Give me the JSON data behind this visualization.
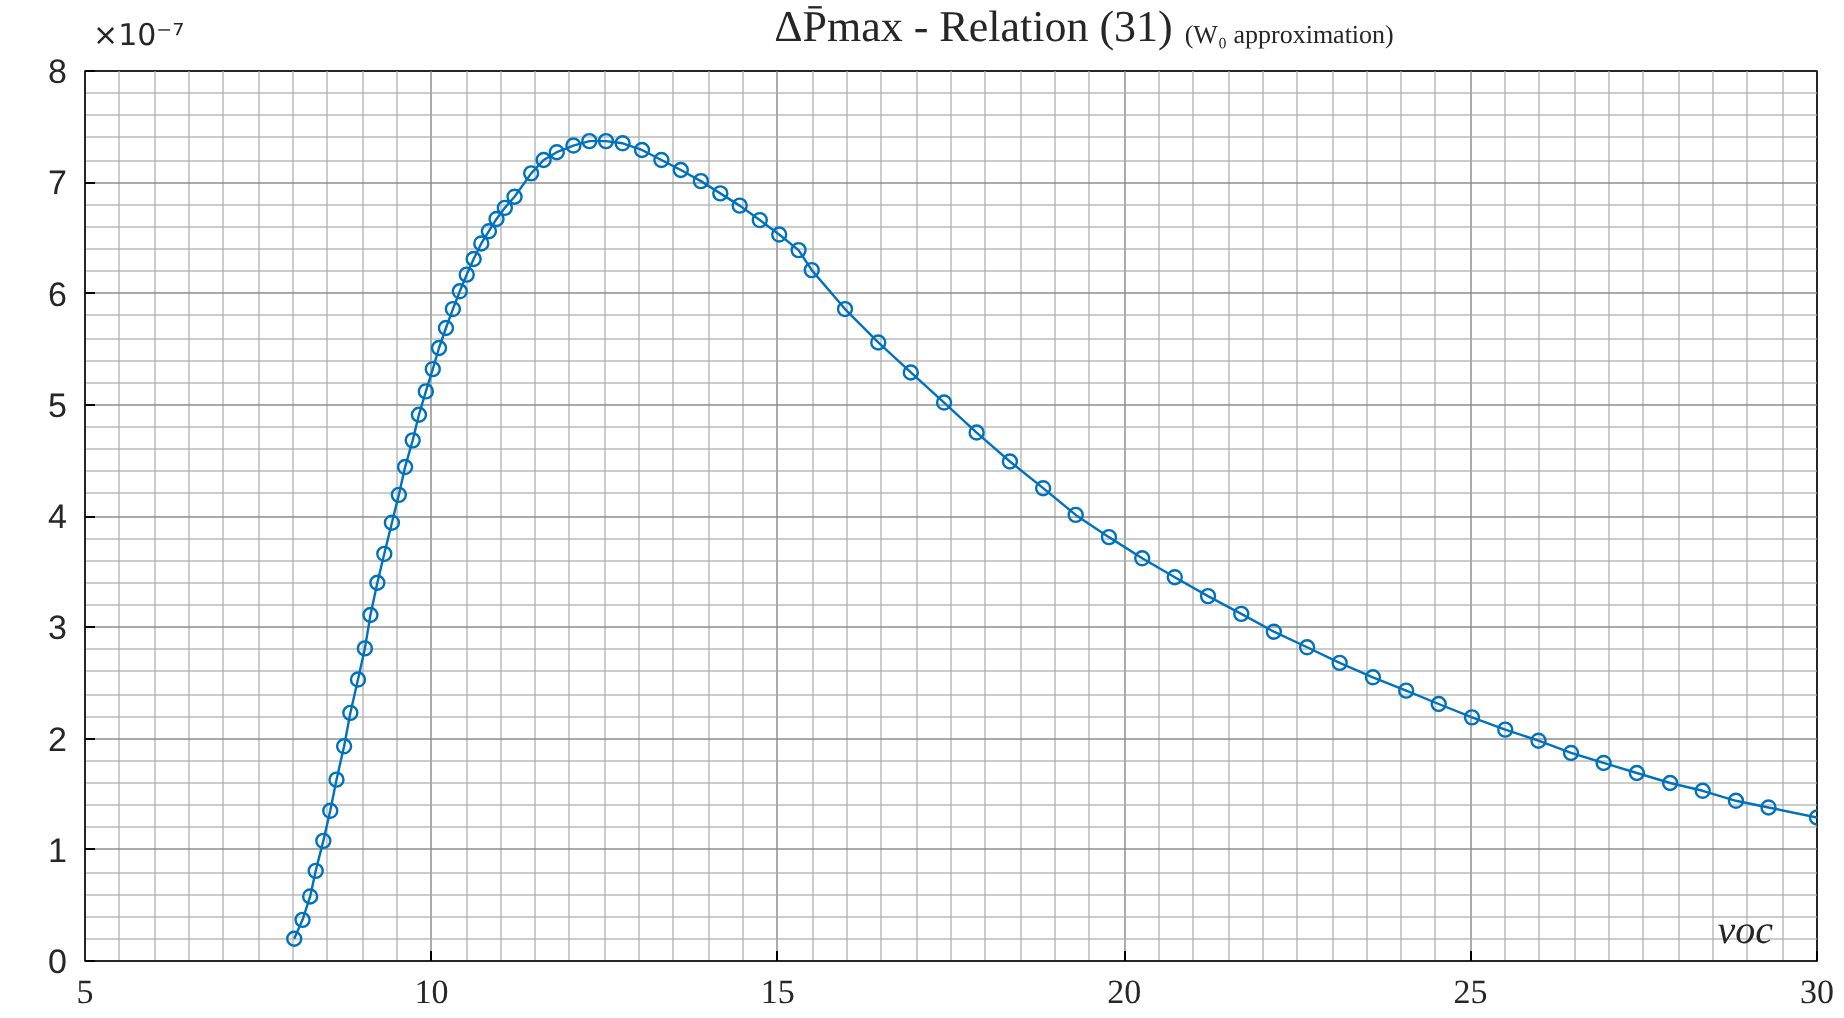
{
  "chart_data": {
    "type": "line",
    "title": "ΔP̄max - Relation (31)",
    "subtitle": "(W₀ approximation)",
    "xlabel": "voc",
    "annotations": [
      "×10⁻⁷"
    ],
    "x": [
      8.02,
      8.14,
      8.25,
      8.33,
      8.44,
      8.54,
      8.63,
      8.74,
      8.83,
      8.94,
      9.04,
      9.12,
      9.22,
      9.32,
      9.43,
      9.53,
      9.62,
      9.73,
      9.82,
      9.92,
      10.02,
      10.11,
      10.21,
      10.31,
      10.41,
      10.51,
      10.61,
      10.72,
      10.83,
      10.94,
      11.06,
      11.2,
      11.44,
      11.62,
      11.81,
      12.05,
      12.28,
      12.52,
      12.76,
      13.04,
      13.32,
      13.6,
      13.89,
      14.17,
      14.45,
      14.74,
      15.02,
      15.3,
      15.49,
      15.97,
      16.45,
      16.92,
      17.4,
      17.87,
      18.35,
      18.83,
      19.3,
      19.78,
      20.26,
      20.73,
      21.21,
      21.69,
      22.16,
      22.64,
      23.11,
      23.59,
      24.07,
      24.54,
      25.02,
      25.5,
      25.98,
      26.45,
      26.92,
      27.4,
      27.88,
      28.35,
      28.83,
      29.3,
      30
    ],
    "series": [
      {
        "color": "#0072bd",
        "values": [
          0.2,
          0.37,
          0.58,
          0.81,
          1.08,
          1.35,
          1.63,
          1.93,
          2.23,
          2.53,
          2.81,
          3.11,
          3.4,
          3.66,
          3.94,
          4.19,
          4.44,
          4.68,
          4.91,
          5.12,
          5.32,
          5.51,
          5.69,
          5.86,
          6.02,
          6.17,
          6.31,
          6.45,
          6.56,
          6.67,
          6.77,
          6.87,
          7.08,
          7.2,
          7.27,
          7.33,
          7.37,
          7.37,
          7.35,
          7.29,
          7.2,
          7.11,
          7.01,
          6.9,
          6.79,
          6.66,
          6.53,
          6.39,
          6.21,
          5.86,
          5.56,
          5.29,
          5.02,
          4.75,
          4.49,
          4.25,
          4.01,
          3.81,
          3.62,
          3.45,
          3.28,
          3.12,
          2.96,
          2.82,
          2.68,
          2.55,
          2.43,
          2.31,
          2.19,
          2.08,
          1.98,
          1.87,
          1.78,
          1.69,
          1.6,
          1.53,
          1.44,
          1.38,
          1.29
        ]
      }
    ],
    "xlim": [
      5,
      30
    ],
    "ylim": [
      0,
      8
    ],
    "xticks": [
      5,
      10,
      15,
      20,
      25,
      30
    ],
    "yticks": [
      0,
      1,
      2,
      3,
      4,
      5,
      6,
      7,
      8
    ],
    "grid": true,
    "marker": "circle",
    "line_style": "solid"
  }
}
